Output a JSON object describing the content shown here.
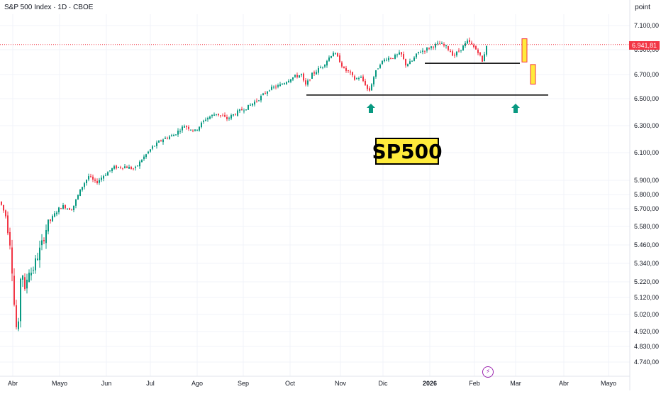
{
  "header": {
    "title": "S&P 500 Index · 1D · CBOE"
  },
  "axis_unit_button": "point",
  "last_price_label": "6.941,81",
  "annotation": "SP500",
  "colors": {
    "up": "#089981",
    "down": "#f23645",
    "annotation_bg": "#ffeb3b",
    "arrow": "#089981",
    "grid": "#f0f3fa",
    "price_line": "#f23645",
    "forecast_box": "#ffeb3b"
  },
  "chart_data": {
    "type": "candlestick",
    "title": "S&P 500 Index · 1D · CBOE",
    "y_axis": {
      "ticks": [
        7100,
        6900,
        6700,
        6500,
        6300,
        6100,
        5900,
        5800,
        5700,
        5580,
        5460,
        5340,
        5220,
        5120,
        5020,
        4920,
        4830,
        4740
      ],
      "tick_labels": [
        "7.100,00",
        "6.900,00",
        "6.700,00",
        "6.500,00",
        "6.300,00",
        "6.100,00",
        "5.900,00",
        "5.800,00",
        "5.700,00",
        "5.580,00",
        "5.460,00",
        "5.340,00",
        "5.220,00",
        "5.120,00",
        "5.020,00",
        "4.920,00",
        "4.830,00",
        "4.740,00"
      ],
      "scale": "log",
      "ylim": [
        4700,
        7200
      ]
    },
    "x_axis": {
      "labels": [
        "Abr",
        "Mayo",
        "Jun",
        "Jul",
        "Ago",
        "Sep",
        "Oct",
        "Nov",
        "Dic",
        "2026",
        "Feb",
        "Mar",
        "Abr",
        "Mayo"
      ],
      "bold_label": "2026"
    },
    "last_price": 6941.81,
    "support_levels": [
      6530,
      6790
    ],
    "path": [
      [
        0,
        5750
      ],
      [
        8,
        5650
      ],
      [
        15,
        5450
      ],
      [
        20,
        5080
      ],
      [
        25,
        4850
      ],
      [
        30,
        5350
      ],
      [
        35,
        5150
      ],
      [
        40,
        5300
      ],
      [
        45,
        5280
      ],
      [
        50,
        5350
      ],
      [
        58,
        5450
      ],
      [
        66,
        5580
      ],
      [
        75,
        5650
      ],
      [
        83,
        5700
      ],
      [
        90,
        5720
      ],
      [
        96,
        5700
      ],
      [
        102,
        5700
      ],
      [
        108,
        5770
      ],
      [
        115,
        5850
      ],
      [
        125,
        5930
      ],
      [
        135,
        5880
      ],
      [
        145,
        5930
      ],
      [
        160,
        5990
      ],
      [
        175,
        6000
      ],
      [
        190,
        5980
      ],
      [
        200,
        6050
      ],
      [
        215,
        6140
      ],
      [
        230,
        6200
      ],
      [
        245,
        6230
      ],
      [
        260,
        6300
      ],
      [
        275,
        6260
      ],
      [
        290,
        6350
      ],
      [
        305,
        6390
      ],
      [
        320,
        6350
      ],
      [
        335,
        6400
      ],
      [
        350,
        6440
      ],
      [
        365,
        6500
      ],
      [
        380,
        6580
      ],
      [
        395,
        6610
      ],
      [
        410,
        6670
      ],
      [
        425,
        6700
      ],
      [
        430,
        6600
      ],
      [
        440,
        6700
      ],
      [
        455,
        6770
      ],
      [
        470,
        6880
      ],
      [
        478,
        6820
      ],
      [
        485,
        6740
      ],
      [
        492,
        6720
      ],
      [
        500,
        6660
      ],
      [
        508,
        6680
      ],
      [
        515,
        6620
      ],
      [
        520,
        6550
      ],
      [
        528,
        6700
      ],
      [
        536,
        6790
      ],
      [
        545,
        6830
      ],
      [
        555,
        6840
      ],
      [
        565,
        6870
      ],
      [
        572,
        6780
      ],
      [
        580,
        6800
      ],
      [
        590,
        6880
      ],
      [
        600,
        6900
      ],
      [
        610,
        6930
      ],
      [
        620,
        6950
      ],
      [
        630,
        6920
      ],
      [
        640,
        6850
      ],
      [
        650,
        6910
      ],
      [
        660,
        6970
      ],
      [
        668,
        6920
      ],
      [
        675,
        6880
      ],
      [
        680,
        6800
      ],
      [
        686,
        6940
      ]
    ],
    "forecast_boxes": [
      {
        "high": 6990,
        "low": 6800
      },
      {
        "high": 6780,
        "low": 6620
      }
    ]
  }
}
